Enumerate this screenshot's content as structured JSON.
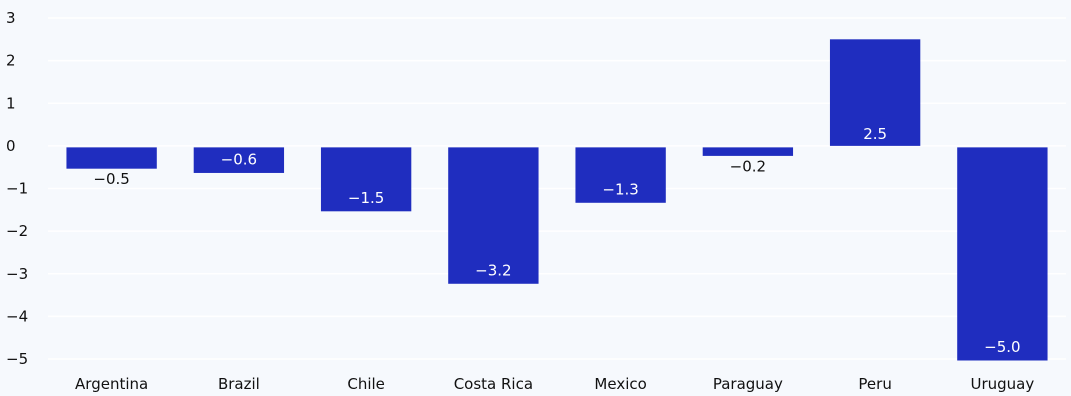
{
  "chart_data": {
    "type": "bar",
    "title": "",
    "xlabel": "",
    "ylabel": "",
    "categories": [
      "Argentina",
      "Brazil",
      "Chile",
      "Costa Rica",
      "Mexico",
      "Paraguay",
      "Peru",
      "Uruguay"
    ],
    "values": [
      -0.5,
      -0.6,
      -1.5,
      -3.2,
      -1.3,
      -0.2,
      2.5,
      -5.0
    ],
    "value_labels": [
      "−0.5",
      "−0.6",
      "−1.5",
      "−3.2",
      "−1.3",
      "−0.2",
      "2.5",
      "−5.0"
    ],
    "yticks": [
      3,
      2,
      1,
      0,
      -1,
      -2,
      -3,
      -4,
      -5
    ],
    "ytick_labels": [
      "3",
      "2",
      "1",
      "0",
      "−1",
      "−2",
      "−3",
      "−4",
      "−5"
    ],
    "ylim": [
      -5,
      3
    ],
    "grid": true,
    "legend": "none",
    "colors": {
      "bar": "#1f2dbf",
      "background": "#f6f9fd",
      "grid": "#ffffff",
      "label_inside": "#ffffff",
      "label_outside": "#111111",
      "axis_text": "#111111"
    }
  }
}
